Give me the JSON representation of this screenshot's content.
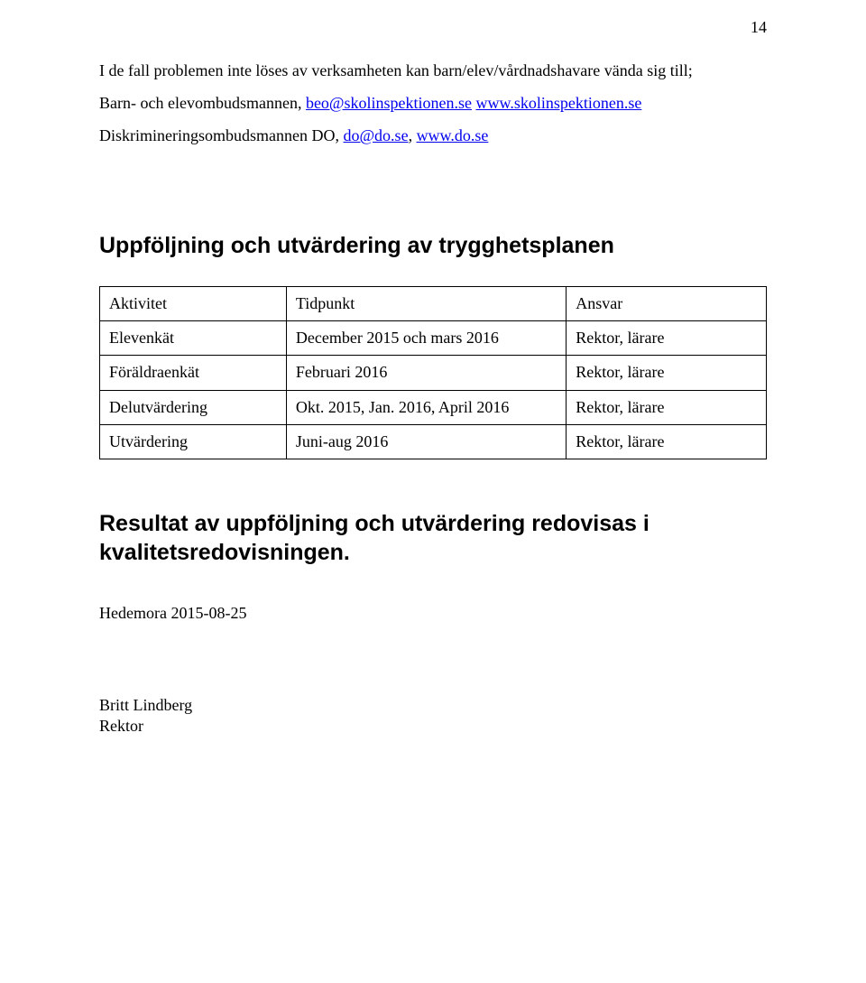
{
  "page_number": "14",
  "paragraph": {
    "line1_prefix": "I de fall problemen inte löses av verksamheten kan barn/elev/vårdnadshavare vända sig till;",
    "line2_prefix": "Barn- och elevombudsmannen, ",
    "email": "beo@skolinspektionen.se",
    "line2_mid": "  ",
    "site1": "www.skolinspektionen.se",
    "line3_prefix": "Diskrimineringsombudsmannen DO, ",
    "email2": "do@do.se",
    "line3_mid": ",    ",
    "site2": "www.do.se"
  },
  "section_heading": "Uppföljning och utvärdering av trygghetsplanen",
  "table": {
    "header": {
      "c0": "Aktivitet",
      "c1": "Tidpunkt",
      "c2": "Ansvar"
    },
    "rows": [
      {
        "c0": "Elevenkät",
        "c1": "December 2015 och mars 2016",
        "c2": "Rektor, lärare"
      },
      {
        "c0": "Föräldraenkät",
        "c1": "Februari 2016",
        "c2": "Rektor, lärare"
      },
      {
        "c0": "Delutvärdering",
        "c1": "Okt. 2015, Jan. 2016, April 2016",
        "c2": "Rektor, lärare"
      },
      {
        "c0": "Utvärdering",
        "c1": "Juni-aug 2016",
        "c2": "Rektor, lärare"
      }
    ]
  },
  "result_heading": "Resultat av uppföljning och utvärdering redovisas i kvalitetsredovisningen.",
  "date_line": "Hedemora 2015-08-25",
  "signature": {
    "name": "Britt Lindberg",
    "title": "Rektor"
  }
}
